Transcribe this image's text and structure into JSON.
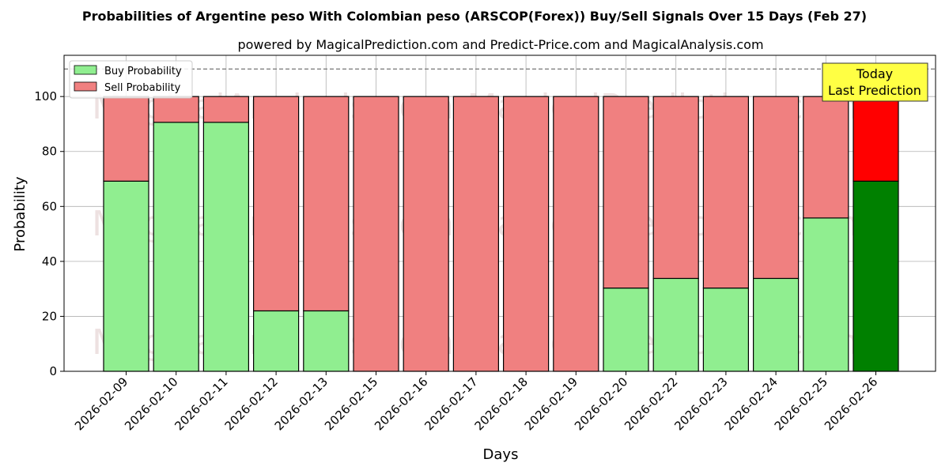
{
  "chart_data": {
    "type": "bar",
    "stacked": true,
    "title": "Probabilities of Argentine peso With Colombian peso (ARSCOP(Forex)) Buy/Sell Signals Over 15 Days (Feb 27)",
    "subtitle": "powered by MagicalPrediction.com and Predict-Price.com and MagicalAnalysis.com",
    "xlabel": "Days",
    "ylabel": "Probability",
    "ylim": [
      0,
      115
    ],
    "yticks": [
      0,
      20,
      40,
      60,
      80,
      100
    ],
    "reference_line": 110,
    "grid": true,
    "legend_position": "top-left",
    "categories": [
      "2026-02-09",
      "2026-02-10",
      "2026-02-11",
      "2026-02-12",
      "2026-02-13",
      "2026-02-15",
      "2026-02-16",
      "2026-02-17",
      "2026-02-18",
      "2026-02-19",
      "2026-02-20",
      "2026-02-22",
      "2026-02-23",
      "2026-02-24",
      "2026-02-25",
      "2026-02-26"
    ],
    "series": [
      {
        "name": "Buy Probability",
        "color": "#90ee90",
        "highlight_color": "#008000",
        "values": [
          69.2,
          90.6,
          90.6,
          22.0,
          22.0,
          0,
          0,
          0,
          0,
          0,
          30.3,
          33.8,
          30.3,
          33.8,
          55.8,
          69.2
        ]
      },
      {
        "name": "Sell Probability",
        "color": "#f08080",
        "highlight_color": "#ff0000",
        "values": [
          30.8,
          9.4,
          9.4,
          78.0,
          78.0,
          100,
          100,
          100,
          100,
          100,
          69.7,
          66.2,
          69.7,
          66.2,
          44.2,
          30.8
        ]
      }
    ],
    "highlight_index": 15,
    "annotation": {
      "line1": "Today",
      "line2": "Last Prediction",
      "background": "#ffff44"
    },
    "watermarks": [
      "MagicalAnalysis.com",
      "MagicalPrediction.com"
    ]
  }
}
